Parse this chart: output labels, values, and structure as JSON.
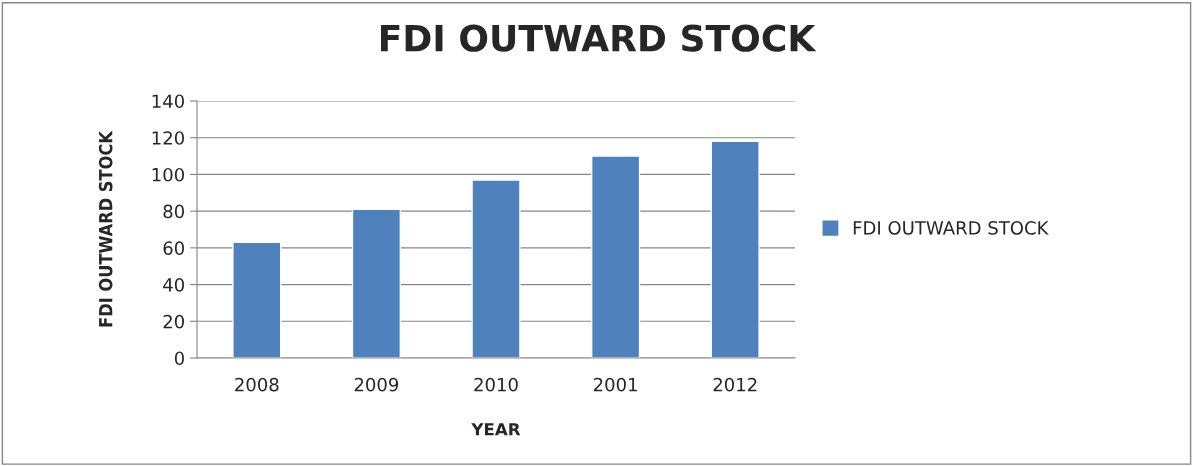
{
  "chart_data": {
    "type": "bar",
    "title": "FDI OUTWARD STOCK",
    "xlabel": "YEAR",
    "ylabel": "FDI OUTWARD STOCK",
    "categories": [
      "2008",
      "2009",
      "2010",
      "2001",
      "2012"
    ],
    "series": [
      {
        "name": "FDI OUTWARD STOCK",
        "color": "#4f81bd",
        "values": [
          63,
          81,
          97,
          110,
          118
        ]
      }
    ],
    "ylim": [
      0,
      140
    ],
    "yticks": [
      0,
      20,
      40,
      60,
      80,
      100,
      120,
      140
    ],
    "grid": "y",
    "legend": "right"
  }
}
